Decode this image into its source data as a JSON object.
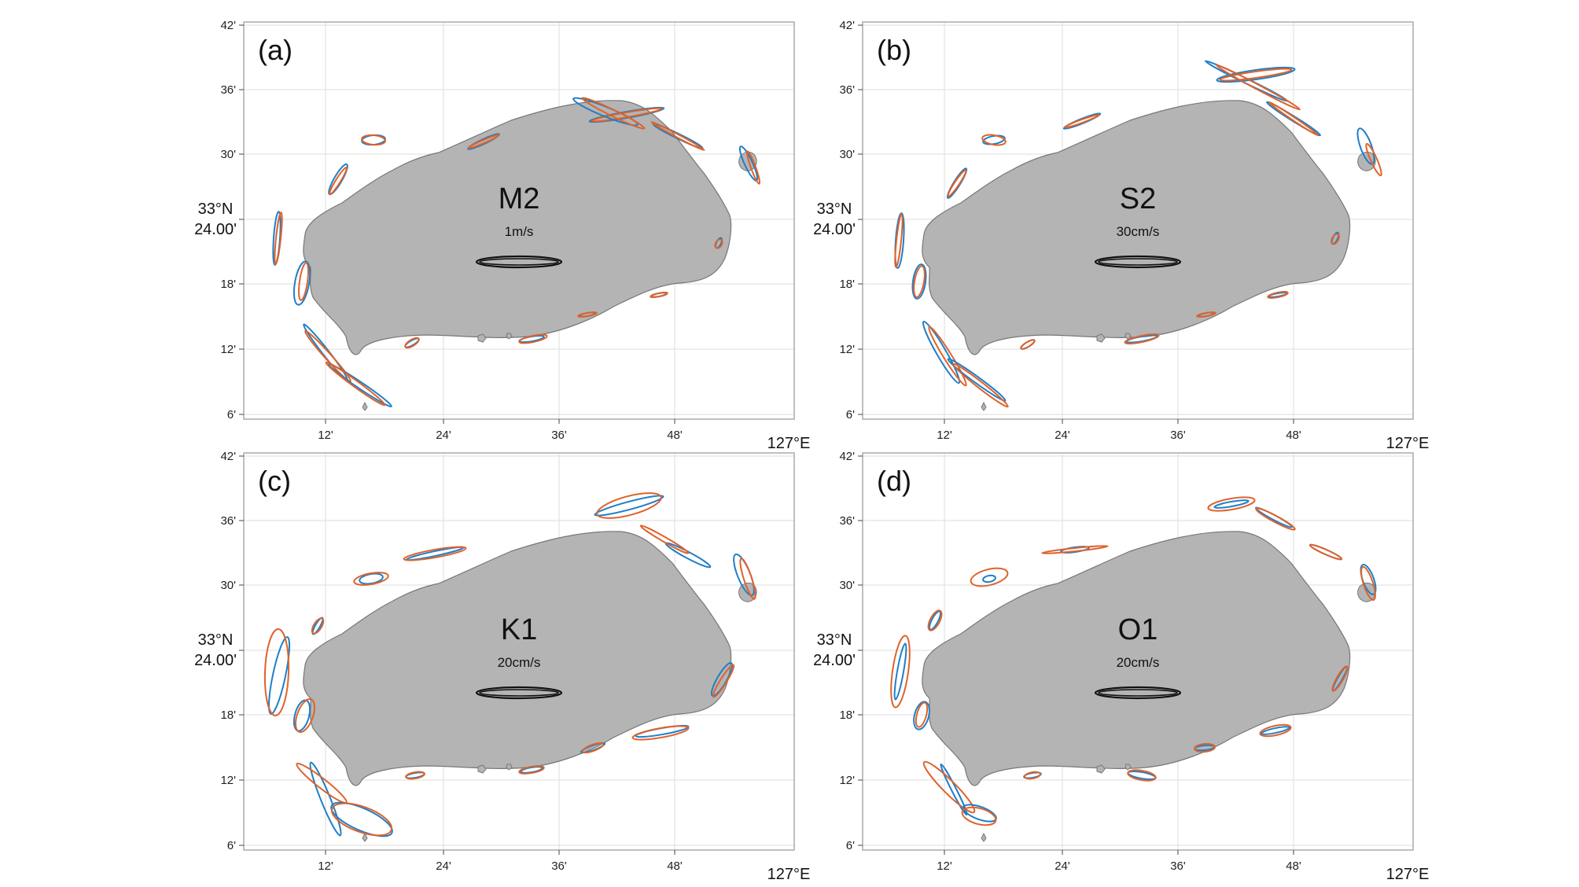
{
  "figure": {
    "colors": {
      "land": "#b4b4b4",
      "land_edge": "#777777",
      "grid": "#dddddd",
      "frame": "#aaaaaa",
      "observed": "#1f7fc8",
      "modeled": "#e0622a",
      "scale": "#111111"
    },
    "axes": {
      "x_ticks": [
        "12'",
        "24'",
        "36'",
        "48'"
      ],
      "x_unit_label": "127°E",
      "y_ticks": [
        "6'",
        "12'",
        "18'",
        "24.00'",
        "30'",
        "36'",
        "42'"
      ],
      "y_unit_label_top": "33°N",
      "y_unit_label_bottom": "24.00'",
      "grid": true
    },
    "panels": [
      {
        "label": "(a)",
        "constituent": "M2",
        "scale_label": "1m/s"
      },
      {
        "label": "(b)",
        "constituent": "S2",
        "scale_label": "30cm/s"
      },
      {
        "label": "(c)",
        "constituent": "K1",
        "scale_label": "20cm/s"
      },
      {
        "label": "(d)",
        "constituent": "O1",
        "scale_label": "20cm/s"
      }
    ]
  }
}
